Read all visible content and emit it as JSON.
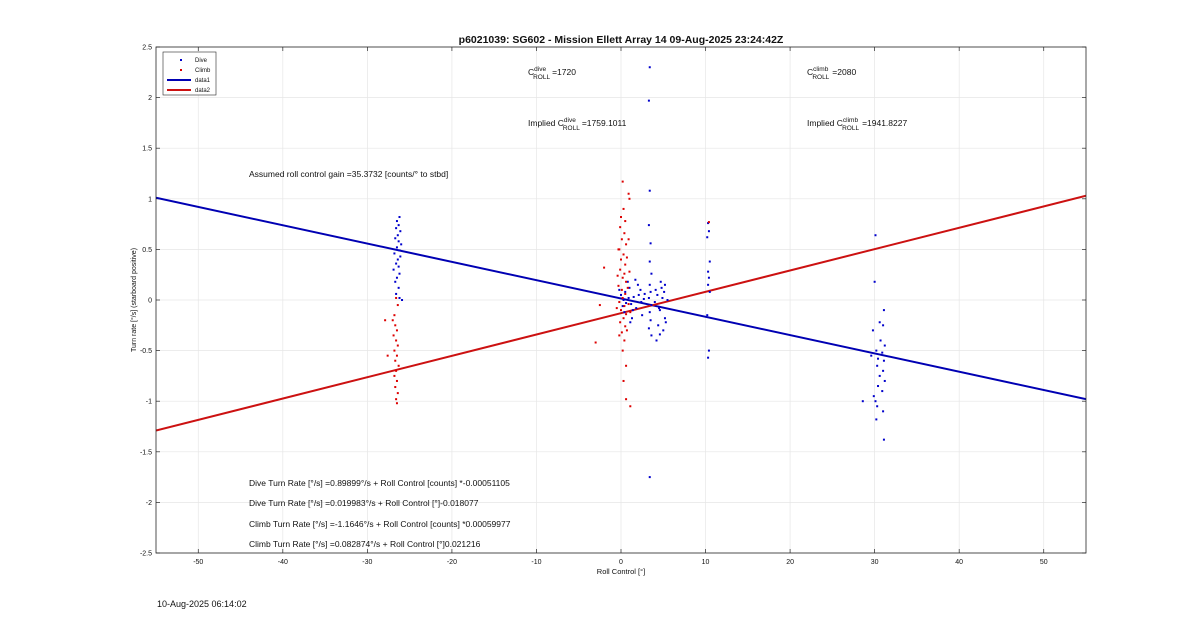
{
  "footer_timestamp": "10-Aug-2025 06:14:02",
  "chart_data": {
    "type": "scatter",
    "title": "p6021039: SG602 - Mission Ellett Array 14 09-Aug-2025 23:24:42Z",
    "xlabel": "Roll Control [°]",
    "ylabel": "Turn rate [°/s] (starboard positive)",
    "xlim": [
      -55,
      55
    ],
    "ylim": [
      -2.5,
      2.5
    ],
    "xticks": [
      -50,
      -40,
      -30,
      -20,
      -10,
      0,
      10,
      20,
      30,
      40,
      50
    ],
    "yticks": [
      -2.5,
      -2,
      -1.5,
      -1,
      -0.5,
      0,
      0.5,
      1,
      1.5,
      2,
      2.5
    ],
    "xtick_labels": [
      "-50",
      "-40",
      "-30",
      "-20",
      "-10",
      "0",
      "10",
      "20",
      "30",
      "40",
      "50"
    ],
    "ytick_labels": [
      "-2.5",
      "-2",
      "-1.5",
      "-1",
      "-0.5",
      "0",
      "0.5",
      "1",
      "1.5",
      "2",
      "2.5"
    ],
    "grid": true,
    "legend_position": "top-left",
    "colors": {
      "dive": "#0000cc",
      "climb": "#dd0000",
      "data1": "#0000b3",
      "data2": "#cc1111"
    },
    "legend": [
      {
        "label": "Dive",
        "kind": "marker",
        "color": "#0000cc"
      },
      {
        "label": "Climb",
        "kind": "marker",
        "color": "#dd0000"
      },
      {
        "label": "data1",
        "kind": "line",
        "color": "#0000b3"
      },
      {
        "label": "data2",
        "kind": "line",
        "color": "#cc1111"
      }
    ],
    "series": [
      {
        "name": "Dive",
        "kind": "scatter",
        "points": [
          [
            -26.2,
            0.82
          ],
          [
            -26.5,
            0.78
          ],
          [
            -26.3,
            0.74
          ],
          [
            -26.6,
            0.71
          ],
          [
            -26.1,
            0.68
          ],
          [
            -26.4,
            0.64
          ],
          [
            -26.7,
            0.61
          ],
          [
            -26.3,
            0.58
          ],
          [
            -26.0,
            0.55
          ],
          [
            -26.5,
            0.52
          ],
          [
            -26.2,
            0.49
          ],
          [
            -26.8,
            0.46
          ],
          [
            -26.1,
            0.43
          ],
          [
            -26.4,
            0.4
          ],
          [
            -26.6,
            0.36
          ],
          [
            -26.3,
            0.33
          ],
          [
            -26.9,
            0.3
          ],
          [
            -26.2,
            0.26
          ],
          [
            -26.5,
            0.22
          ],
          [
            -26.7,
            0.18
          ],
          [
            -26.3,
            0.12
          ],
          [
            -26.6,
            0.06
          ],
          [
            -26.2,
            0.02
          ],
          [
            -25.9,
            0.0
          ],
          [
            3.4,
            2.3
          ],
          [
            3.3,
            1.97
          ],
          [
            3.4,
            1.08
          ],
          [
            3.3,
            0.74
          ],
          [
            3.5,
            0.56
          ],
          [
            3.4,
            0.38
          ],
          [
            3.6,
            0.26
          ],
          [
            3.4,
            0.15
          ],
          [
            3.5,
            0.08
          ],
          [
            3.3,
            0.02
          ],
          [
            3.6,
            -0.05
          ],
          [
            3.4,
            -0.12
          ],
          [
            3.5,
            -0.2
          ],
          [
            3.3,
            -0.28
          ],
          [
            3.6,
            -0.35
          ],
          [
            3.4,
            -1.75
          ],
          [
            0.0,
            0.05
          ],
          [
            0.3,
            0.0
          ],
          [
            0.6,
            -0.03
          ],
          [
            -0.2,
            0.1
          ],
          [
            0.9,
            0.02
          ],
          [
            1.2,
            -0.04
          ],
          [
            1.5,
            0.03
          ],
          [
            1.8,
            -0.08
          ],
          [
            2.1,
            0.05
          ],
          [
            2.4,
            -0.02
          ],
          [
            2.7,
            0.01
          ],
          [
            0.5,
            0.08
          ],
          [
            1.0,
            0.12
          ],
          [
            1.4,
            -0.1
          ],
          [
            0.2,
            -0.06
          ],
          [
            2.0,
            0.15
          ],
          [
            2.5,
            -0.15
          ],
          [
            1.7,
            0.2
          ],
          [
            1.3,
            -0.18
          ],
          [
            0.8,
            0.18
          ],
          [
            2.3,
            0.1
          ],
          [
            1.1,
            -0.22
          ],
          [
            0.4,
            -0.12
          ],
          [
            2.8,
            0.06
          ],
          [
            4.0,
            -0.02
          ],
          [
            4.3,
            0.05
          ],
          [
            4.6,
            -0.1
          ],
          [
            4.9,
            0.02
          ],
          [
            5.2,
            -0.18
          ],
          [
            4.4,
            -0.25
          ],
          [
            4.8,
            0.12
          ],
          [
            5.0,
            -0.3
          ],
          [
            4.2,
            -0.4
          ],
          [
            4.7,
            0.18
          ],
          [
            5.1,
            0.08
          ],
          [
            4.5,
            -0.08
          ],
          [
            5.3,
            -0.22
          ],
          [
            4.1,
            0.1
          ],
          [
            5.5,
            0.0
          ],
          [
            4.6,
            -0.34
          ],
          [
            5.2,
            0.15
          ],
          [
            10.3,
            0.76
          ],
          [
            10.4,
            0.68
          ],
          [
            10.2,
            0.62
          ],
          [
            10.5,
            0.38
          ],
          [
            10.3,
            0.28
          ],
          [
            10.4,
            0.22
          ],
          [
            10.3,
            0.15
          ],
          [
            10.5,
            0.08
          ],
          [
            10.2,
            -0.15
          ],
          [
            10.4,
            -0.5
          ],
          [
            10.3,
            -0.57
          ],
          [
            30.1,
            0.64
          ],
          [
            30.0,
            0.18
          ],
          [
            31.1,
            -0.1
          ],
          [
            30.6,
            -0.22
          ],
          [
            31.0,
            -0.25
          ],
          [
            29.8,
            -0.3
          ],
          [
            30.7,
            -0.4
          ],
          [
            31.2,
            -0.45
          ],
          [
            30.2,
            -0.5
          ],
          [
            30.9,
            -0.52
          ],
          [
            29.6,
            -0.55
          ],
          [
            30.4,
            -0.58
          ],
          [
            31.1,
            -0.6
          ],
          [
            30.3,
            -0.65
          ],
          [
            31.0,
            -0.7
          ],
          [
            30.6,
            -0.75
          ],
          [
            31.2,
            -0.8
          ],
          [
            30.4,
            -0.85
          ],
          [
            30.9,
            -0.9
          ],
          [
            29.9,
            -0.95
          ],
          [
            30.1,
            -1.0
          ],
          [
            28.6,
            -1.0
          ],
          [
            30.3,
            -1.05
          ],
          [
            31.0,
            -1.1
          ],
          [
            30.2,
            -1.18
          ],
          [
            31.1,
            -1.38
          ]
        ]
      },
      {
        "name": "Climb",
        "kind": "scatter",
        "points": [
          [
            -26.6,
            0.02
          ],
          [
            -26.4,
            -0.05
          ],
          [
            -26.8,
            -0.15
          ],
          [
            -27.0,
            -0.2
          ],
          [
            -26.7,
            -0.25
          ],
          [
            -26.5,
            -0.3
          ],
          [
            -26.9,
            -0.35
          ],
          [
            -26.6,
            -0.4
          ],
          [
            -26.4,
            -0.45
          ],
          [
            -26.8,
            -0.5
          ],
          [
            -26.5,
            -0.55
          ],
          [
            -26.7,
            -0.6
          ],
          [
            -26.3,
            -0.65
          ],
          [
            -26.6,
            -0.7
          ],
          [
            -26.8,
            -0.75
          ],
          [
            -26.5,
            -0.8
          ],
          [
            -26.7,
            -0.86
          ],
          [
            -26.4,
            -0.92
          ],
          [
            -26.6,
            -0.98
          ],
          [
            -26.5,
            -1.02
          ],
          [
            -27.6,
            -0.55
          ],
          [
            -27.9,
            -0.2
          ],
          [
            0.2,
            1.17
          ],
          [
            0.3,
            0.9
          ],
          [
            0.0,
            0.82
          ],
          [
            0.5,
            0.78
          ],
          [
            -0.1,
            0.72
          ],
          [
            0.4,
            0.66
          ],
          [
            0.1,
            0.6
          ],
          [
            0.6,
            0.55
          ],
          [
            -0.2,
            0.5
          ],
          [
            0.3,
            0.45
          ],
          [
            0.0,
            0.4
          ],
          [
            0.5,
            0.35
          ],
          [
            -0.1,
            0.3
          ],
          [
            0.4,
            0.26
          ],
          [
            0.2,
            0.22
          ],
          [
            0.6,
            0.18
          ],
          [
            -0.3,
            0.14
          ],
          [
            0.1,
            0.1
          ],
          [
            0.5,
            0.06
          ],
          [
            0.2,
            0.02
          ],
          [
            -0.2,
            -0.02
          ],
          [
            0.4,
            -0.06
          ],
          [
            0.0,
            -0.1
          ],
          [
            0.6,
            -0.14
          ],
          [
            0.3,
            -0.18
          ],
          [
            -0.1,
            -0.22
          ],
          [
            0.5,
            -0.26
          ],
          [
            0.1,
            -0.32
          ],
          [
            0.4,
            -0.4
          ],
          [
            0.2,
            -0.5
          ],
          [
            0.6,
            -0.65
          ],
          [
            0.3,
            -0.8
          ],
          [
            -0.2,
            -0.35
          ],
          [
            0.7,
            0.42
          ],
          [
            0.8,
            0.12
          ],
          [
            0.9,
            -0.04
          ],
          [
            1.0,
            0.28
          ],
          [
            1.1,
            -0.12
          ],
          [
            0.9,
            0.6
          ],
          [
            0.7,
            -0.3
          ],
          [
            -0.4,
            0.24
          ],
          [
            -0.5,
            -0.08
          ],
          [
            -0.3,
            0.5
          ],
          [
            1.0,
            1.0
          ],
          [
            0.6,
            -0.98
          ],
          [
            0.9,
            1.05
          ],
          [
            1.1,
            -1.05
          ],
          [
            -2.0,
            0.32
          ],
          [
            -2.5,
            -0.05
          ],
          [
            -3.0,
            -0.42
          ],
          [
            10.4,
            0.77
          ]
        ]
      },
      {
        "name": "data1",
        "kind": "line",
        "points": [
          [
            -55,
            1.01
          ],
          [
            55,
            -0.98
          ]
        ]
      },
      {
        "name": "data2",
        "kind": "line",
        "points": [
          [
            -55,
            -1.29
          ],
          [
            55,
            1.03
          ]
        ]
      }
    ],
    "annotations": {
      "c_dive": {
        "prefix": "C",
        "sup": "dive",
        "sub": "ROLL",
        "value": "=1720"
      },
      "c_climb": {
        "prefix": "C",
        "sup": "climb",
        "sub": "ROLL",
        "value": "=2080"
      },
      "implied_dive": {
        "prefix": "Implied C",
        "sup": "dive",
        "sub": "ROLL",
        "value": "=1759.1011"
      },
      "implied_climb": {
        "prefix": "Implied C",
        "sup": "climb",
        "sub": "ROLL",
        "value": "=1941.8227"
      },
      "roll_gain": "Assumed roll control gain =35.3732 [counts/° to stbd]",
      "equations": [
        "Dive Turn Rate [°/s] =0.89899°/s + Roll Control [counts] *-0.00051105",
        "Dive Turn Rate [°/s] =0.019983°/s + Roll Control [°]-0.018077",
        "Climb Turn Rate [°/s] =-1.1646°/s + Roll Control [counts] *0.00059977",
        "Climb Turn Rate [°/s] =0.082874°/s + Roll Control [°]0.021216"
      ]
    }
  }
}
